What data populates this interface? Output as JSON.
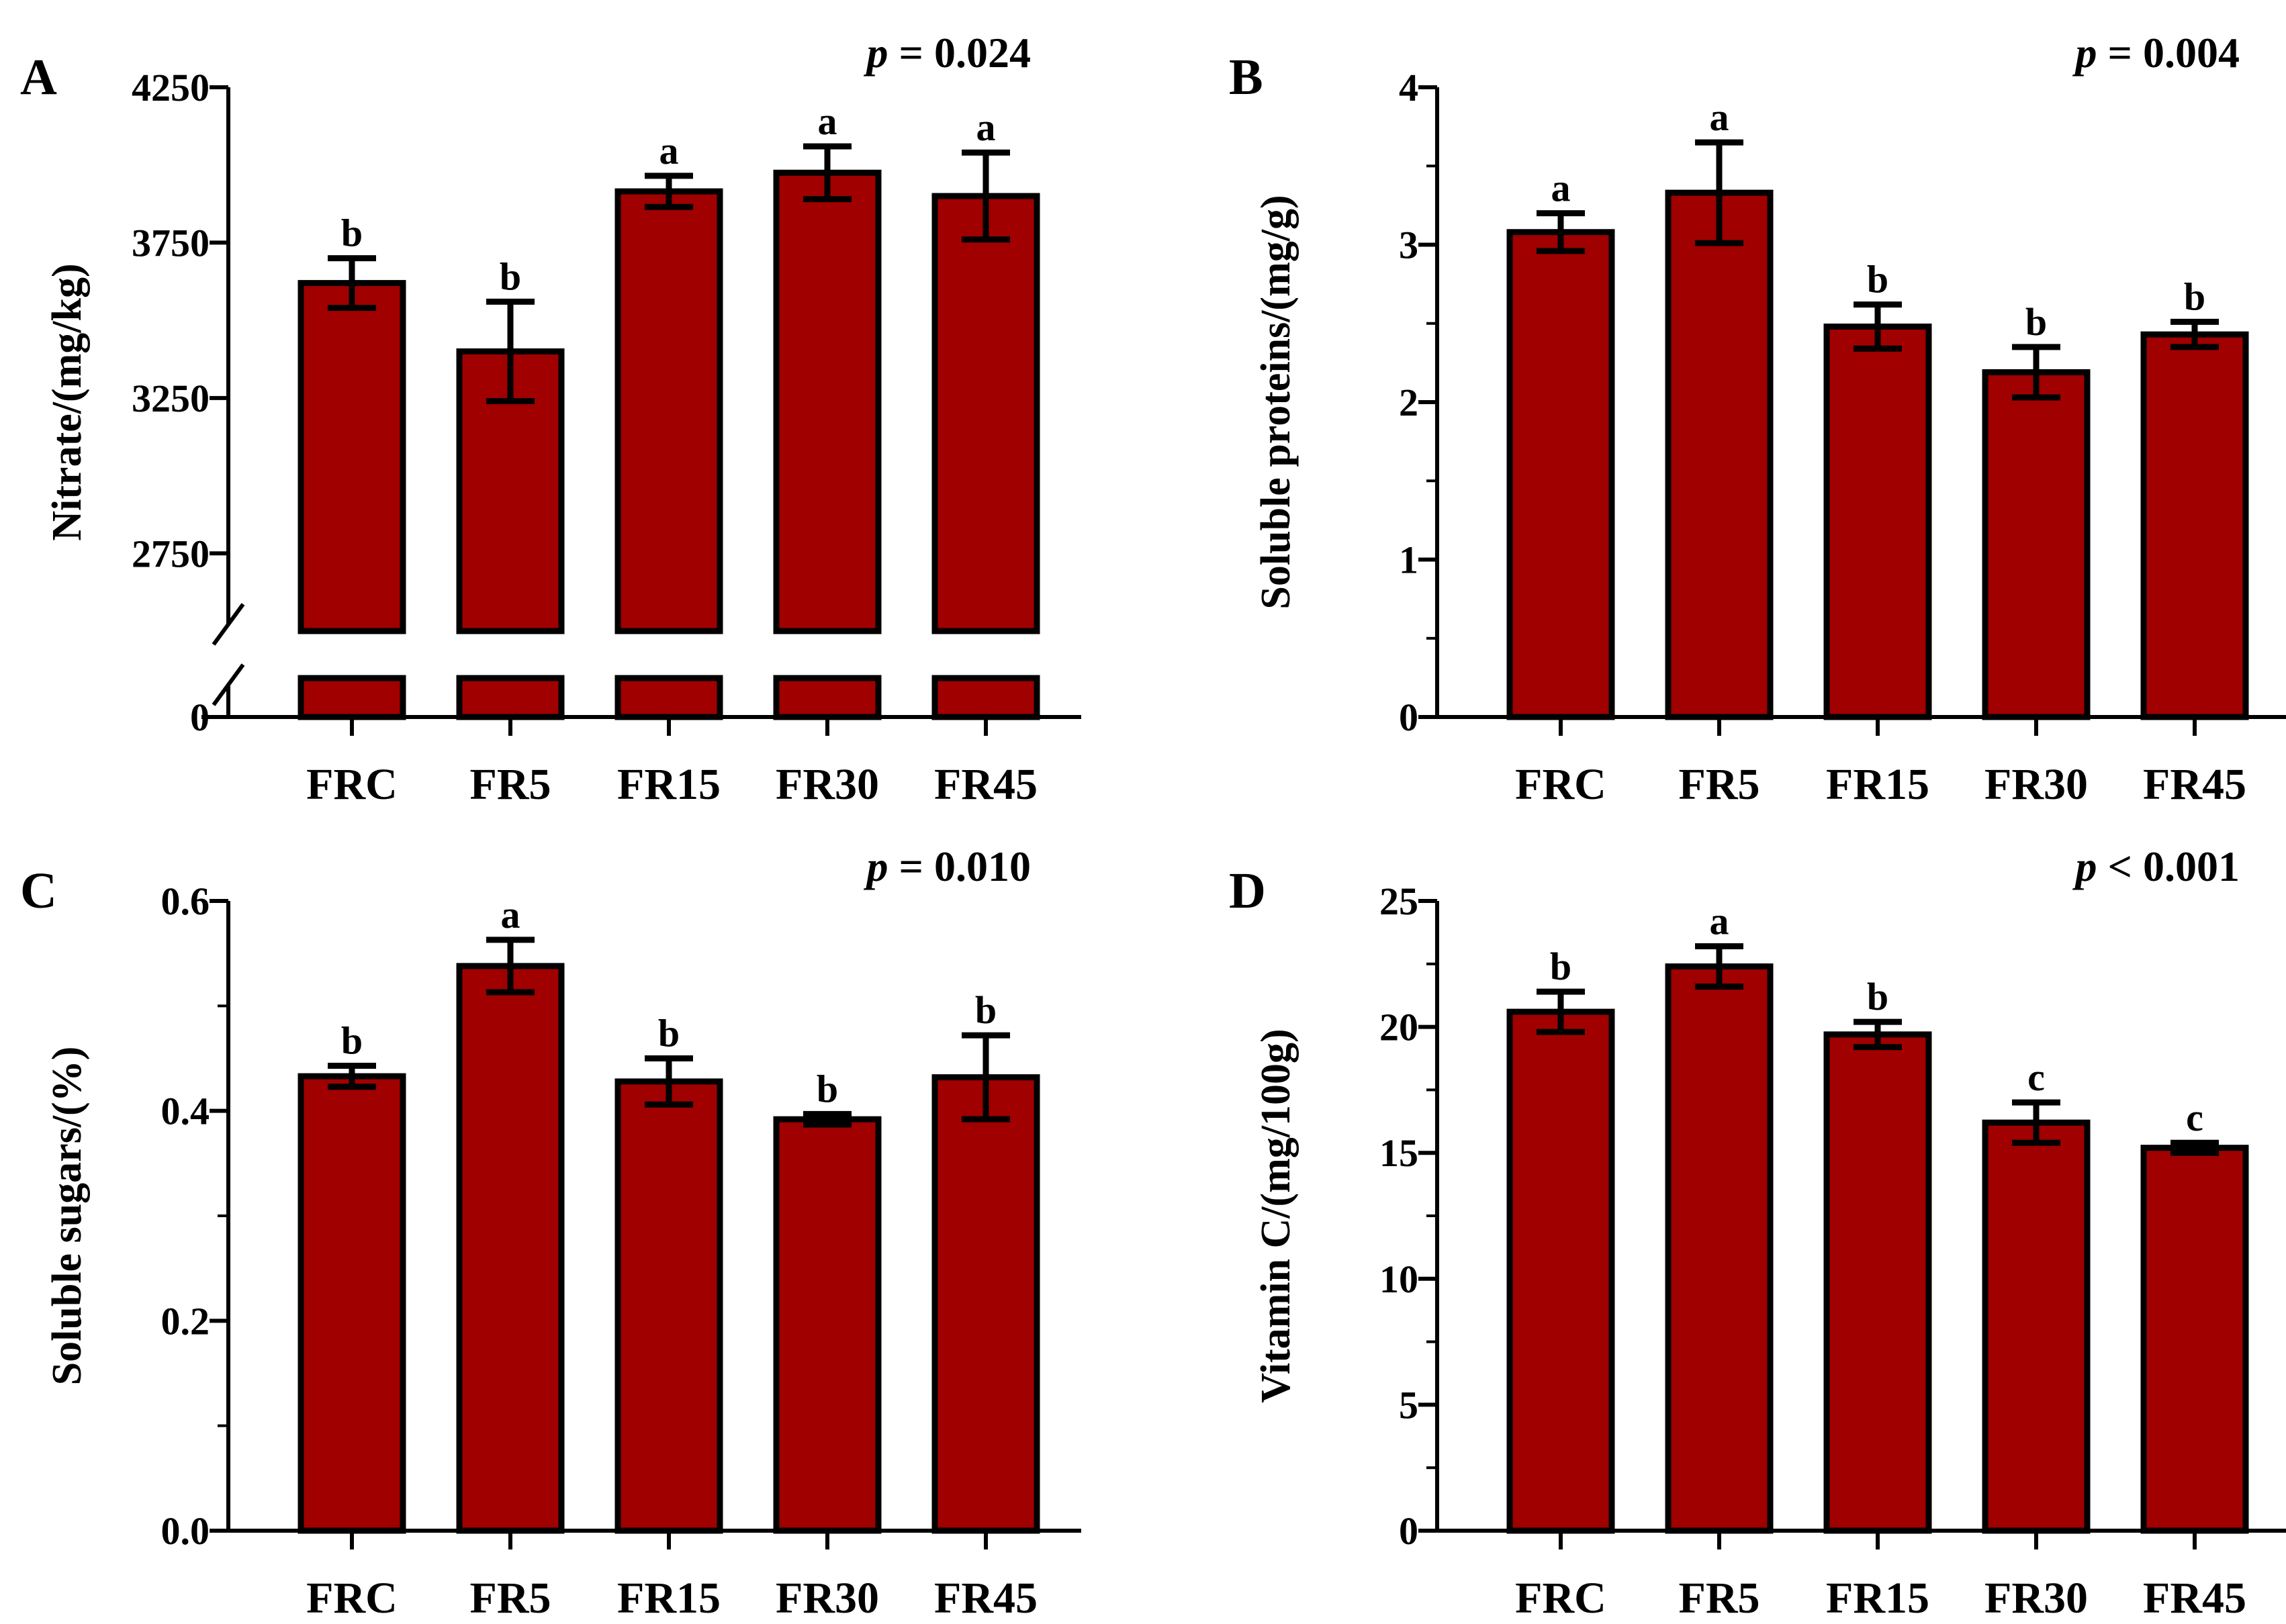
{
  "figure": {
    "colors": {
      "bar_fill": "#A00000",
      "outline": "#000000",
      "background": "#FFFFFF"
    }
  },
  "chart_data": [
    {
      "panel": "A",
      "type": "bar",
      "title": "",
      "p_label": "p",
      "p_relation": "= 0.024",
      "xlabel": "",
      "ylabel": "Nitrate/(mg/kg)",
      "categories": [
        "FRC",
        "FR5",
        "FR15",
        "FR30",
        "FR45"
      ],
      "values": [
        3620,
        3400,
        3915,
        3975,
        3900
      ],
      "errors": [
        80,
        160,
        50,
        85,
        140
      ],
      "letters": [
        "b",
        "b",
        "a",
        "a",
        "a"
      ],
      "axis_break": true,
      "yticks": [
        0,
        2750,
        3250,
        3750,
        4250
      ],
      "ytick_labels": [
        "0",
        "2750",
        "3250",
        "3750",
        "4250"
      ],
      "ylim": [
        2500,
        4250
      ],
      "grid": false
    },
    {
      "panel": "B",
      "type": "bar",
      "title": "",
      "p_label": "p",
      "p_relation": "= 0.004",
      "xlabel": "",
      "ylabel": "Soluble proteins/(mg/g)",
      "categories": [
        "FRC",
        "FR5",
        "FR15",
        "FR30",
        "FR45"
      ],
      "values": [
        3.08,
        3.33,
        2.48,
        2.19,
        2.43
      ],
      "errors": [
        0.12,
        0.32,
        0.14,
        0.16,
        0.08
      ],
      "letters": [
        "a",
        "a",
        "b",
        "b",
        "b"
      ],
      "axis_break": false,
      "yticks": [
        0,
        1,
        2,
        3,
        4
      ],
      "ytick_labels": [
        "0",
        "1",
        "2",
        "3",
        "4"
      ],
      "ylim": [
        0,
        4
      ],
      "grid": false
    },
    {
      "panel": "C",
      "type": "bar",
      "title": "",
      "p_label": "p",
      "p_relation": "= 0.010",
      "xlabel": "",
      "ylabel": "Soluble sugars/(%)",
      "categories": [
        "FRC",
        "FR5",
        "FR15",
        "FR30",
        "FR45"
      ],
      "values": [
        0.433,
        0.538,
        0.428,
        0.392,
        0.432
      ],
      "errors": [
        0.01,
        0.025,
        0.022,
        0.005,
        0.04
      ],
      "letters": [
        "b",
        "a",
        "b",
        "b",
        "b"
      ],
      "axis_break": false,
      "yticks": [
        0,
        0.2,
        0.4,
        0.6
      ],
      "ytick_labels": [
        "0.0",
        "0.2",
        "0.4",
        "0.6"
      ],
      "ylim": [
        0,
        0.6
      ],
      "grid": false
    },
    {
      "panel": "D",
      "type": "bar",
      "title": "",
      "p_label": "p",
      "p_relation": "< 0.001",
      "xlabel": "",
      "ylabel": "Vitamin C/(mg/100g)",
      "categories": [
        "FRC",
        "FR5",
        "FR15",
        "FR30",
        "FR45"
      ],
      "values": [
        20.6,
        22.4,
        19.7,
        16.2,
        15.2
      ],
      "errors": [
        0.8,
        0.8,
        0.5,
        0.8,
        0.2
      ],
      "letters": [
        "b",
        "a",
        "b",
        "c",
        "c"
      ],
      "axis_break": false,
      "yticks": [
        0,
        5,
        10,
        15,
        20,
        25
      ],
      "ytick_labels": [
        "0",
        "5",
        "10",
        "15",
        "20",
        "25"
      ],
      "ylim": [
        0,
        25
      ],
      "grid": false
    }
  ]
}
